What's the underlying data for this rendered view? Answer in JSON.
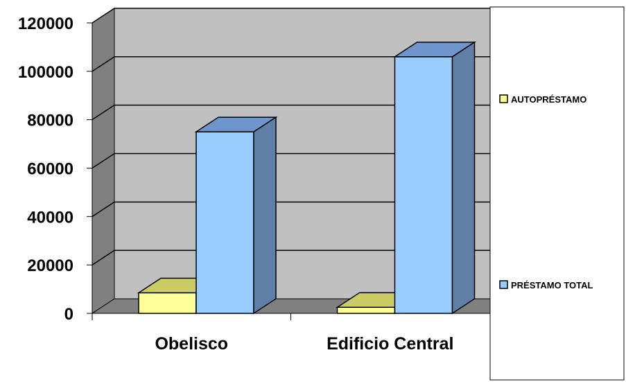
{
  "chart_data": {
    "type": "bar",
    "categories": [
      "Obelisco",
      "Edificio Central"
    ],
    "series": [
      {
        "name": "AUTOPRÉSTAMO",
        "values": [
          8500,
          2500
        ],
        "color": "#ffff99"
      },
      {
        "name": "PRÉSTAMO TOTAL",
        "values": [
          75000,
          106000
        ],
        "color": "#99ccff"
      }
    ],
    "title": "",
    "xlabel": "",
    "ylabel": "",
    "ylim": [
      0,
      120000
    ],
    "yticks": [
      "0",
      "20000",
      "40000",
      "60000",
      "80000",
      "100000",
      "120000"
    ],
    "grid": true,
    "legend_position": "right",
    "style": "3d-clustered-column",
    "wall_color": "#c0c0c0",
    "side_wall_color": "#808080"
  }
}
